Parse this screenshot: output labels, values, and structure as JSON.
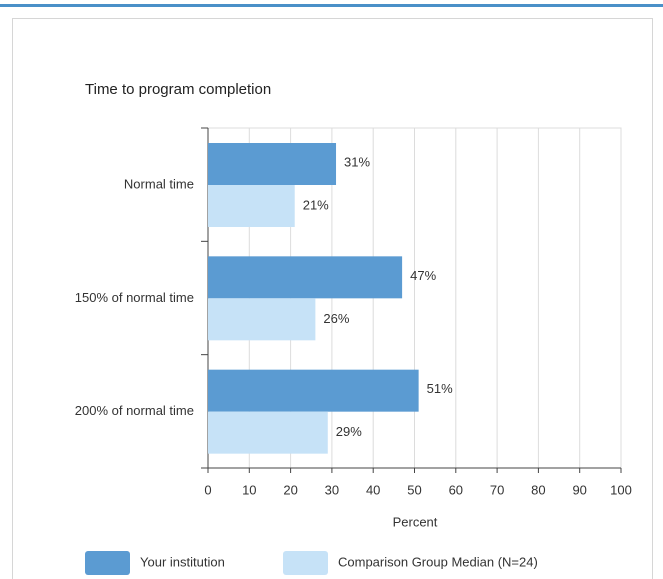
{
  "chart_data": {
    "type": "hbar",
    "title": "Time to program completion",
    "categories": [
      "Normal time",
      "150% of normal time",
      "200% of normal time"
    ],
    "series": [
      {
        "name": "Your institution",
        "color": "#5b9bd2",
        "values": [
          31,
          47,
          51
        ],
        "value_labels": [
          "31%",
          "47%",
          "51%"
        ]
      },
      {
        "name": "Comparison Group Median (N=24)",
        "color": "#c6e2f7",
        "values": [
          21,
          26,
          29
        ],
        "value_labels": [
          "21%",
          "26%",
          "29%"
        ]
      }
    ],
    "x_label": "Percent",
    "xlim": [
      0,
      100
    ],
    "xticks": [
      0,
      10,
      20,
      30,
      40,
      50,
      60,
      70,
      80,
      90,
      100
    ],
    "grid": true,
    "legend": "bottom"
  }
}
